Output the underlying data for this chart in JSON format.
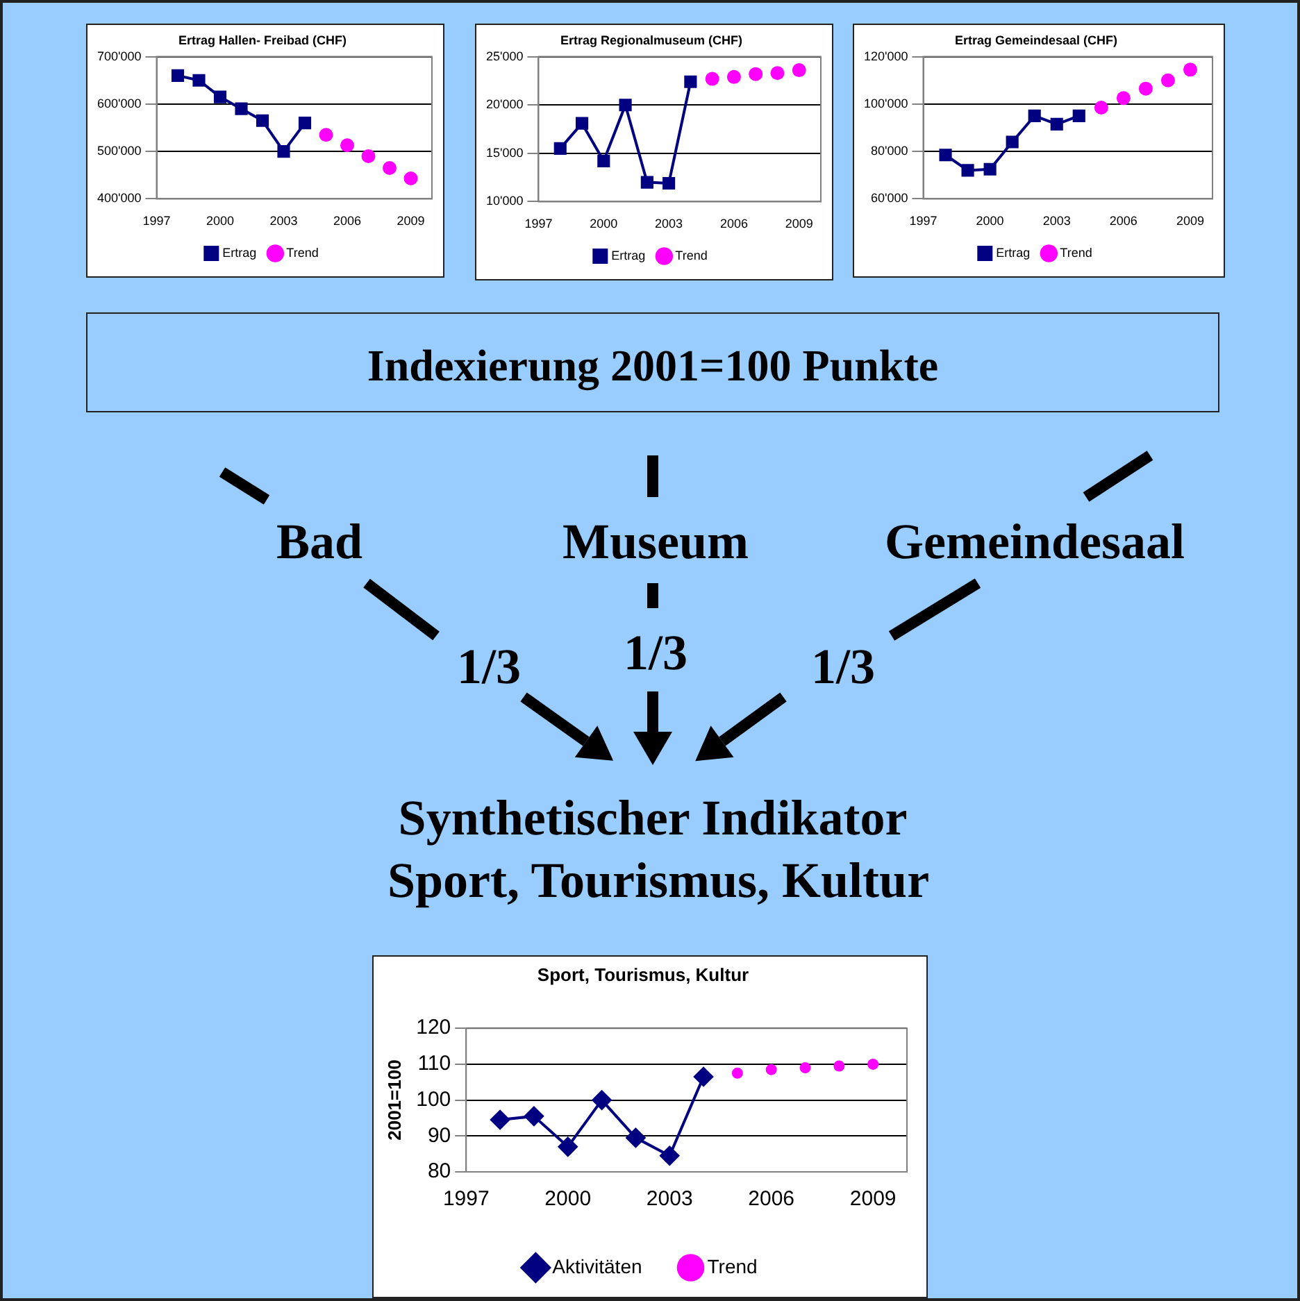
{
  "chart_data": [
    {
      "type": "line",
      "title": "Ertrag Hallen- Freibad (CHF)",
      "xlim": [
        1997,
        2010
      ],
      "xticks": [
        1997,
        2000,
        2003,
        2006,
        2009
      ],
      "ylim": [
        400000,
        700000
      ],
      "yticks": [
        {
          "value": 400000,
          "label": "400'000"
        },
        {
          "value": 500000,
          "label": "500'000"
        },
        {
          "value": 600000,
          "label": "600'000"
        },
        {
          "value": 700000,
          "label": "700'000"
        }
      ],
      "grid": "y",
      "legend": "bottom",
      "series": [
        {
          "name": "Ertrag",
          "type": "line",
          "marker": "square",
          "color": "#000080",
          "x": [
            1998,
            1999,
            2000,
            2001,
            2002,
            2003,
            2004
          ],
          "values": [
            660000,
            650000,
            615000,
            590000,
            565000,
            500000,
            560000
          ]
        },
        {
          "name": "Trend",
          "type": "scatter",
          "marker": "circle",
          "color": "#ff00ff",
          "x": [
            2005,
            2006,
            2007,
            2008,
            2009
          ],
          "values": [
            535000,
            513000,
            490000,
            465000,
            443000
          ]
        }
      ]
    },
    {
      "type": "line",
      "title": "Ertrag Regionalmuseum (CHF)",
      "xlim": [
        1997,
        2010
      ],
      "xticks": [
        1997,
        2000,
        2003,
        2006,
        2009
      ],
      "ylim": [
        10000,
        25000
      ],
      "yticks": [
        {
          "value": 10000,
          "label": "10'000"
        },
        {
          "value": 15000,
          "label": "15'000"
        },
        {
          "value": 20000,
          "label": "20'000"
        },
        {
          "value": 25000,
          "label": "25'000"
        }
      ],
      "grid": "y",
      "legend": "bottom",
      "series": [
        {
          "name": "Ertrag",
          "type": "line",
          "marker": "square",
          "color": "#000080",
          "x": [
            1998,
            1999,
            2000,
            2001,
            2002,
            2003,
            2004
          ],
          "values": [
            15500,
            18100,
            14200,
            20000,
            12000,
            11900,
            22400
          ]
        },
        {
          "name": "Trend",
          "type": "scatter",
          "marker": "circle",
          "color": "#ff00ff",
          "x": [
            2005,
            2006,
            2007,
            2008,
            2009
          ],
          "values": [
            22700,
            22900,
            23200,
            23300,
            23600
          ]
        }
      ]
    },
    {
      "type": "line",
      "title": "Ertrag Gemeindesaal (CHF)",
      "xlim": [
        1997,
        2010
      ],
      "xticks": [
        1997,
        2000,
        2003,
        2006,
        2009
      ],
      "ylim": [
        60000,
        120000
      ],
      "yticks": [
        {
          "value": 60000,
          "label": "60'000"
        },
        {
          "value": 80000,
          "label": "80'000"
        },
        {
          "value": 100000,
          "label": "100'000"
        },
        {
          "value": 120000,
          "label": "120'000"
        }
      ],
      "grid": "y",
      "legend": "bottom",
      "series": [
        {
          "name": "Ertrag",
          "type": "line",
          "marker": "square",
          "color": "#000080",
          "x": [
            1998,
            1999,
            2000,
            2001,
            2002,
            2003,
            2004
          ],
          "values": [
            78500,
            72000,
            72500,
            84000,
            95000,
            91500,
            95000
          ]
        },
        {
          "name": "Trend",
          "type": "scatter",
          "marker": "circle",
          "color": "#ff00ff",
          "x": [
            2005,
            2006,
            2007,
            2008,
            2009
          ],
          "values": [
            98500,
            102500,
            106500,
            110000,
            114500
          ]
        }
      ]
    },
    {
      "type": "other",
      "annotations": [
        "Indexierung 2001=100 Punkte",
        "Bad",
        "Museum",
        "Gemeindesaal",
        "1/3",
        "1/3",
        "1/3",
        "Synthetischer Indikator",
        "Sport, Tourismus, Kultur"
      ]
    },
    {
      "type": "line",
      "title": "Sport, Tourismus, Kultur",
      "ylabel": "2001=100",
      "xlim": [
        1997,
        2010
      ],
      "xticks": [
        1997,
        2000,
        2003,
        2006,
        2009
      ],
      "ylim": [
        80,
        120
      ],
      "yticks": [
        80,
        90,
        100,
        110,
        120
      ],
      "grid": "y",
      "legend": "bottom",
      "series": [
        {
          "name": "Aktivitäten",
          "type": "line",
          "marker": "diamond",
          "color": "#000080",
          "x": [
            1998,
            1999,
            2000,
            2001,
            2002,
            2003,
            2004
          ],
          "values": [
            94.5,
            95.5,
            87,
            100,
            89.5,
            84.5,
            106.5
          ]
        },
        {
          "name": "Trend",
          "type": "scatter",
          "marker": "circle",
          "color": "#ff00ff",
          "x": [
            2005,
            2006,
            2007,
            2008,
            2009
          ],
          "values": [
            107.5,
            108.5,
            109,
            109.5,
            110
          ]
        }
      ]
    }
  ]
}
